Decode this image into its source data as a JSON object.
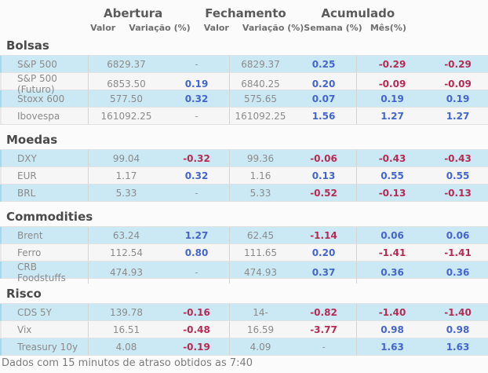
{
  "header": {
    "groups": [
      "Abertura",
      "Fechamento",
      "Acumulado"
    ],
    "subheaders": [
      "Valor",
      "Variação (%)",
      "Valor",
      "Variação (%)",
      "Semana (%)",
      "Mês(%)"
    ]
  },
  "sections": [
    {
      "title": "Bolsas",
      "rows": [
        {
          "label": "S&P 500",
          "cells": [
            {
              "v": "6829.37",
              "t": "plain"
            },
            {
              "v": "-",
              "t": "dash"
            },
            {
              "v": "6829.37",
              "t": "plain"
            },
            {
              "v": "0.25",
              "t": "pos"
            },
            {
              "v": "-0.29",
              "t": "neg"
            },
            {
              "v": "-0.29",
              "t": "neg"
            }
          ]
        },
        {
          "label": "S&P 500 (Futuro)",
          "cells": [
            {
              "v": "6853.50",
              "t": "plain"
            },
            {
              "v": "0.19",
              "t": "pos"
            },
            {
              "v": "6840.25",
              "t": "plain"
            },
            {
              "v": "0.20",
              "t": "pos"
            },
            {
              "v": "-0.09",
              "t": "neg"
            },
            {
              "v": "-0.09",
              "t": "neg"
            }
          ]
        },
        {
          "label": "Stoxx 600",
          "cells": [
            {
              "v": "577.50",
              "t": "plain"
            },
            {
              "v": "0.32",
              "t": "pos"
            },
            {
              "v": "575.65",
              "t": "plain"
            },
            {
              "v": "0.07",
              "t": "pos"
            },
            {
              "v": "0.19",
              "t": "pos"
            },
            {
              "v": "0.19",
              "t": "pos"
            }
          ]
        },
        {
          "label": "Ibovespa",
          "cells": [
            {
              "v": "161092.25",
              "t": "plain"
            },
            {
              "v": "-",
              "t": "dash"
            },
            {
              "v": "161092.25",
              "t": "plain"
            },
            {
              "v": "1.56",
              "t": "pos"
            },
            {
              "v": "1.27",
              "t": "pos"
            },
            {
              "v": "1.27",
              "t": "pos"
            }
          ]
        }
      ]
    },
    {
      "title": "Moedas",
      "rows": [
        {
          "label": "DXY",
          "cells": [
            {
              "v": "99.04",
              "t": "plain"
            },
            {
              "v": "-0.32",
              "t": "neg"
            },
            {
              "v": "99.36",
              "t": "plain"
            },
            {
              "v": "-0.06",
              "t": "neg"
            },
            {
              "v": "-0.43",
              "t": "neg"
            },
            {
              "v": "-0.43",
              "t": "neg"
            }
          ]
        },
        {
          "label": "EUR",
          "cells": [
            {
              "v": "1.17",
              "t": "plain"
            },
            {
              "v": "0.32",
              "t": "pos"
            },
            {
              "v": "1.16",
              "t": "plain"
            },
            {
              "v": "0.13",
              "t": "pos"
            },
            {
              "v": "0.55",
              "t": "pos"
            },
            {
              "v": "0.55",
              "t": "pos"
            }
          ]
        },
        {
          "label": "BRL",
          "cells": [
            {
              "v": "5.33",
              "t": "plain"
            },
            {
              "v": "-",
              "t": "dash"
            },
            {
              "v": "5.33",
              "t": "plain"
            },
            {
              "v": "-0.52",
              "t": "neg"
            },
            {
              "v": "-0.13",
              "t": "neg"
            },
            {
              "v": "-0.13",
              "t": "neg"
            }
          ]
        }
      ]
    },
    {
      "title": "Commodities",
      "rows": [
        {
          "label": "Brent",
          "cells": [
            {
              "v": "63.24",
              "t": "plain"
            },
            {
              "v": "1.27",
              "t": "pos"
            },
            {
              "v": "62.45",
              "t": "plain"
            },
            {
              "v": "-1.14",
              "t": "neg"
            },
            {
              "v": "0.06",
              "t": "pos"
            },
            {
              "v": "0.06",
              "t": "pos"
            }
          ]
        },
        {
          "label": "Ferro",
          "cells": [
            {
              "v": "112.54",
              "t": "plain"
            },
            {
              "v": "0.80",
              "t": "pos"
            },
            {
              "v": "111.65",
              "t": "plain"
            },
            {
              "v": "0.20",
              "t": "pos"
            },
            {
              "v": "-1.41",
              "t": "neg"
            },
            {
              "v": "-1.41",
              "t": "neg"
            }
          ]
        },
        {
          "label": "CRB Foodstuffs",
          "cells": [
            {
              "v": "474.93",
              "t": "plain"
            },
            {
              "v": "-",
              "t": "dash"
            },
            {
              "v": "474.93",
              "t": "plain"
            },
            {
              "v": "0.37",
              "t": "pos"
            },
            {
              "v": "0.36",
              "t": "pos"
            },
            {
              "v": "0.36",
              "t": "pos"
            }
          ]
        }
      ]
    },
    {
      "title": "Risco",
      "rows": [
        {
          "label": "CDS 5Y",
          "cells": [
            {
              "v": "139.78",
              "t": "plain"
            },
            {
              "v": "-0.16",
              "t": "neg"
            },
            {
              "v": "14-",
              "t": "plain"
            },
            {
              "v": "-0.82",
              "t": "neg"
            },
            {
              "v": "-1.40",
              "t": "neg"
            },
            {
              "v": "-1.40",
              "t": "neg"
            }
          ]
        },
        {
          "label": "Vix",
          "cells": [
            {
              "v": "16.51",
              "t": "plain"
            },
            {
              "v": "-0.48",
              "t": "neg"
            },
            {
              "v": "16.59",
              "t": "plain"
            },
            {
              "v": "-3.77",
              "t": "neg"
            },
            {
              "v": "0.98",
              "t": "pos"
            },
            {
              "v": "0.98",
              "t": "pos"
            }
          ]
        },
        {
          "label": "Treasury 10y",
          "cells": [
            {
              "v": "4.08",
              "t": "plain"
            },
            {
              "v": "-0.19",
              "t": "neg"
            },
            {
              "v": "4.09",
              "t": "plain"
            },
            {
              "v": "-",
              "t": "dash"
            },
            {
              "v": "1.63",
              "t": "pos"
            },
            {
              "v": "1.63",
              "t": "pos"
            }
          ]
        }
      ]
    }
  ],
  "footer": "Dados com 15 minutos de atraso obtidos as 7:40",
  "colors": {
    "positive_value": "#4465cd",
    "negative_value": "#b52b54",
    "highlight_row": "#cbe8f5",
    "alt_row": "#f6f6f6"
  }
}
